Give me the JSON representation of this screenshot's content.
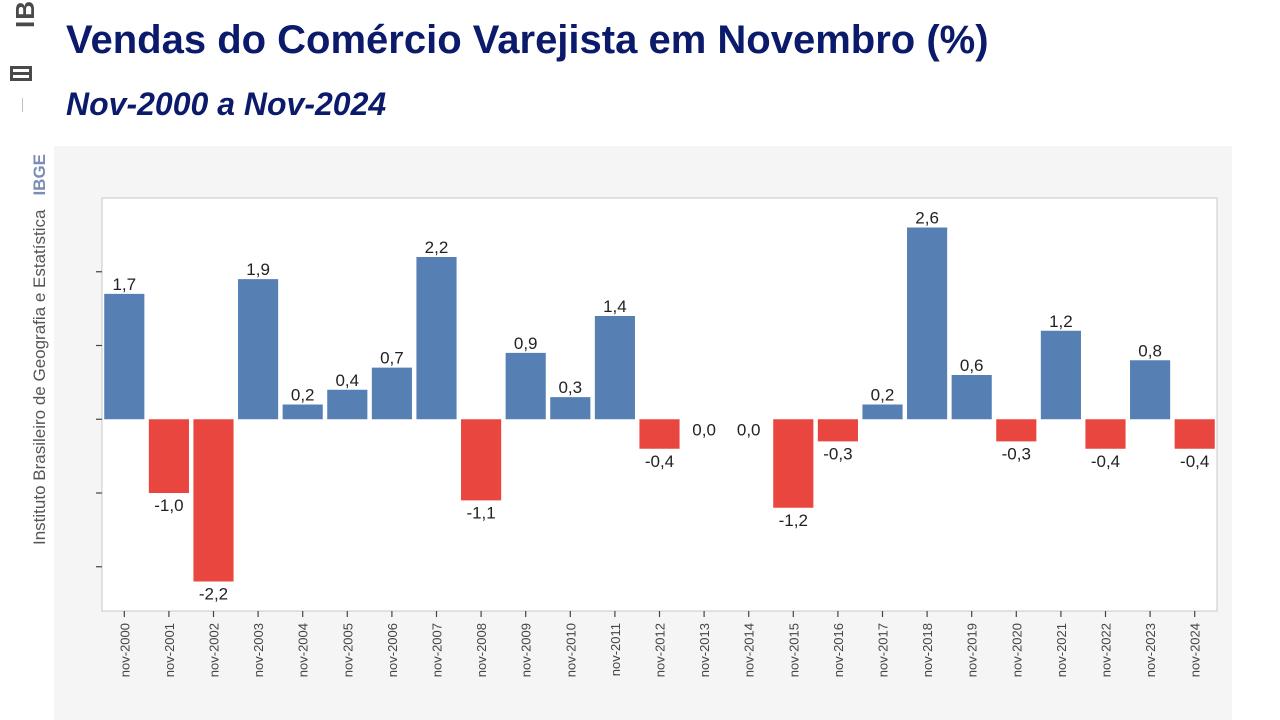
{
  "sidebar": {
    "logo_text": "IBGE",
    "institute_name": "Instituto Brasileiro de Geografia e Estatística",
    "institute_acronym": "IBGE"
  },
  "header": {
    "title": "Vendas do Comércio Varejista em Novembro (%)",
    "subtitle": "Nov-2000 a Nov-2024"
  },
  "colors": {
    "positive": "#5680b4",
    "negative": "#e8463f",
    "title": "#0c1a6b"
  },
  "chart_data": {
    "type": "bar",
    "title": "Vendas do Comércio Varejista em Novembro (%)",
    "subtitle": "Nov-2000 a Nov-2024",
    "xlabel": "",
    "ylabel": "",
    "ylim": [
      -2.6,
      3.0
    ],
    "grid": false,
    "legend": "none",
    "categories": [
      "nov-2000",
      "nov-2001",
      "nov-2002",
      "nov-2003",
      "nov-2004",
      "nov-2005",
      "nov-2006",
      "nov-2007",
      "nov-2008",
      "nov-2009",
      "nov-2010",
      "nov-2011",
      "nov-2012",
      "nov-2013",
      "nov-2014",
      "nov-2015",
      "nov-2016",
      "nov-2017",
      "nov-2018",
      "nov-2019",
      "nov-2020",
      "nov-2021",
      "nov-2022",
      "nov-2023",
      "nov-2024"
    ],
    "values": [
      1.7,
      -1.0,
      -2.2,
      1.9,
      0.2,
      0.4,
      0.7,
      2.2,
      -1.1,
      0.9,
      0.3,
      1.4,
      -0.4,
      0.0,
      0.0,
      -1.2,
      -0.3,
      0.2,
      2.6,
      0.6,
      -0.3,
      1.2,
      -0.4,
      0.8,
      -0.4
    ],
    "labels": [
      "1,7",
      "-1,0",
      "-2,2",
      "1,9",
      "0,2",
      "0,4",
      "0,7",
      "2,2",
      "-1,1",
      "0,9",
      "0,3",
      "1,4",
      "-0,4",
      "0,0",
      "0,0",
      "-1,2",
      "-0,3",
      "0,2",
      "2,6",
      "0,6",
      "-0,3",
      "1,2",
      "-0,4",
      "0,8",
      "-0,4"
    ]
  }
}
